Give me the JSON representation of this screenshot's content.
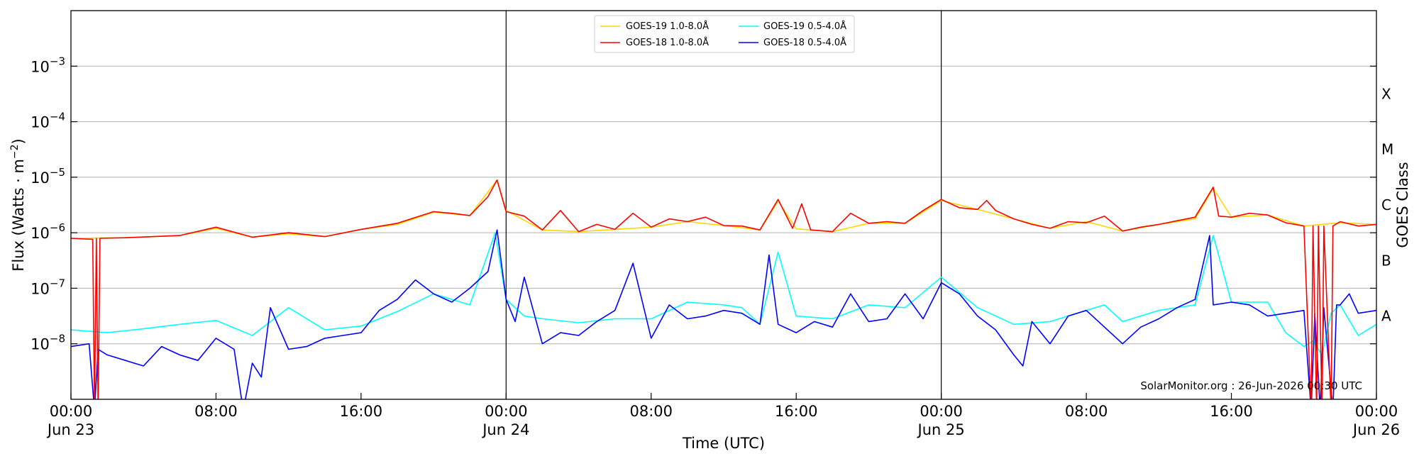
{
  "chart_data": {
    "type": "line",
    "xlabel": "Time (UTC)",
    "ylabel": "Flux (Watts · m",
    "ylabel_sup": "−2",
    "ylabel_close": ")",
    "right_ylabel": "GOES Class",
    "credit": "SolarMonitor.org : 26-Jun-2026 00:30 UTC",
    "x_range_hours": [
      0,
      72
    ],
    "y_range_log10": [
      -9,
      -2
    ],
    "y_scale": "log",
    "grid": "horizontal at decades",
    "legend_position": "top-center",
    "x_ticks": [
      {
        "hour": 0,
        "time": "00:00",
        "date": "Jun 23"
      },
      {
        "hour": 8,
        "time": "08:00",
        "date": ""
      },
      {
        "hour": 16,
        "time": "16:00",
        "date": ""
      },
      {
        "hour": 24,
        "time": "00:00",
        "date": "Jun 24"
      },
      {
        "hour": 32,
        "time": "08:00",
        "date": ""
      },
      {
        "hour": 40,
        "time": "16:00",
        "date": ""
      },
      {
        "hour": 48,
        "time": "00:00",
        "date": "Jun 25"
      },
      {
        "hour": 56,
        "time": "08:00",
        "date": ""
      },
      {
        "hour": 64,
        "time": "16:00",
        "date": ""
      },
      {
        "hour": 72,
        "time": "00:00",
        "date": "Jun 26"
      }
    ],
    "y_ticks": [
      {
        "exp": -8,
        "label": "−8"
      },
      {
        "exp": -7,
        "label": "−7"
      },
      {
        "exp": -6,
        "label": "−6"
      },
      {
        "exp": -5,
        "label": "−5"
      },
      {
        "exp": -4,
        "label": "−4"
      },
      {
        "exp": -3,
        "label": "−3"
      }
    ],
    "day_boundaries_hours": [
      24,
      48
    ],
    "goes_classes": [
      {
        "label": "A",
        "exp": -7.5
      },
      {
        "label": "B",
        "exp": -6.5
      },
      {
        "label": "C",
        "exp": -5.5
      },
      {
        "label": "M",
        "exp": -4.5
      },
      {
        "label": "X",
        "exp": -3.5
      }
    ],
    "colors": {
      "goes19_long": "#ffd700",
      "goes18_long": "#ff0000",
      "goes19_short": "#00ffff",
      "goes18_short": "#0000ff"
    },
    "series": [
      {
        "name": "GOES-19 1.0-8.0Å",
        "color": "#ffd700",
        "points": [
          [
            0,
            -6.1
          ],
          [
            3,
            -6.09
          ],
          [
            6,
            -6.05
          ],
          [
            8,
            -5.92
          ],
          [
            10,
            -6.08
          ],
          [
            12,
            -6.02
          ],
          [
            14,
            -6.07
          ],
          [
            16,
            -5.94
          ],
          [
            18,
            -5.85
          ],
          [
            20,
            -5.63
          ],
          [
            22,
            -5.69
          ],
          [
            23.5,
            -5.05
          ],
          [
            24,
            -5.6
          ],
          [
            26,
            -5.95
          ],
          [
            28,
            -5.98
          ],
          [
            30,
            -5.94
          ],
          [
            32,
            -5.9
          ],
          [
            34,
            -5.8
          ],
          [
            36,
            -5.87
          ],
          [
            38,
            -5.95
          ],
          [
            39,
            -5.43
          ],
          [
            40,
            -5.93
          ],
          [
            42,
            -5.98
          ],
          [
            44,
            -5.83
          ],
          [
            46,
            -5.83
          ],
          [
            48,
            -5.42
          ],
          [
            50,
            -5.58
          ],
          [
            52,
            -5.75
          ],
          [
            54,
            -5.92
          ],
          [
            56,
            -5.8
          ],
          [
            58,
            -5.97
          ],
          [
            60,
            -5.85
          ],
          [
            62,
            -5.75
          ],
          [
            63,
            -5.2
          ],
          [
            64,
            -5.72
          ],
          [
            66,
            -5.68
          ],
          [
            68,
            -5.88
          ],
          [
            70,
            -5.82
          ],
          [
            72,
            -5.85
          ]
        ]
      },
      {
        "name": "GOES-18 1.0-8.0Å",
        "color": "#ff0000",
        "points": [
          [
            0,
            -6.1
          ],
          [
            1.2,
            -6.12
          ],
          [
            1.3,
            -9.2
          ],
          [
            1.4,
            -6.1
          ],
          [
            1.5,
            -9.2
          ],
          [
            1.6,
            -6.1
          ],
          [
            3,
            -6.09
          ],
          [
            6,
            -6.05
          ],
          [
            8,
            -5.9
          ],
          [
            10,
            -6.08
          ],
          [
            12,
            -6.0
          ],
          [
            14,
            -6.07
          ],
          [
            16,
            -5.94
          ],
          [
            18,
            -5.83
          ],
          [
            20,
            -5.62
          ],
          [
            21,
            -5.65
          ],
          [
            22,
            -5.69
          ],
          [
            23,
            -5.35
          ],
          [
            23.5,
            -5.05
          ],
          [
            24,
            -5.62
          ],
          [
            25,
            -5.7
          ],
          [
            26,
            -5.95
          ],
          [
            27,
            -5.6
          ],
          [
            28,
            -5.98
          ],
          [
            29,
            -5.85
          ],
          [
            30,
            -5.94
          ],
          [
            31,
            -5.65
          ],
          [
            32,
            -5.9
          ],
          [
            33,
            -5.75
          ],
          [
            34,
            -5.8
          ],
          [
            35,
            -5.72
          ],
          [
            36,
            -5.87
          ],
          [
            37,
            -5.88
          ],
          [
            38,
            -5.95
          ],
          [
            39,
            -5.4
          ],
          [
            39.8,
            -5.92
          ],
          [
            40.3,
            -5.48
          ],
          [
            40.8,
            -5.95
          ],
          [
            42,
            -5.98
          ],
          [
            43,
            -5.65
          ],
          [
            44,
            -5.83
          ],
          [
            45,
            -5.8
          ],
          [
            46,
            -5.83
          ],
          [
            47,
            -5.6
          ],
          [
            48,
            -5.4
          ],
          [
            49,
            -5.55
          ],
          [
            50,
            -5.58
          ],
          [
            50.5,
            -5.42
          ],
          [
            51,
            -5.6
          ],
          [
            52,
            -5.75
          ],
          [
            53,
            -5.85
          ],
          [
            54,
            -5.92
          ],
          [
            55,
            -5.8
          ],
          [
            56,
            -5.82
          ],
          [
            57,
            -5.7
          ],
          [
            58,
            -5.97
          ],
          [
            59,
            -5.9
          ],
          [
            60,
            -5.85
          ],
          [
            62,
            -5.72
          ],
          [
            63,
            -5.18
          ],
          [
            63.3,
            -5.7
          ],
          [
            64,
            -5.72
          ],
          [
            65,
            -5.65
          ],
          [
            66,
            -5.68
          ],
          [
            67,
            -5.82
          ],
          [
            68,
            -5.88
          ],
          [
            68.4,
            -9.2
          ],
          [
            68.5,
            -5.88
          ],
          [
            68.7,
            -9.2
          ],
          [
            68.8,
            -5.88
          ],
          [
            69.0,
            -9.2
          ],
          [
            69.1,
            -5.88
          ],
          [
            69.5,
            -9.2
          ],
          [
            69.6,
            -5.88
          ],
          [
            70,
            -5.8
          ],
          [
            71,
            -5.88
          ],
          [
            72,
            -5.85
          ]
        ]
      },
      {
        "name": "GOES-19 0.5-4.0Å",
        "color": "#00ffff",
        "points": [
          [
            0,
            -7.75
          ],
          [
            2,
            -7.8
          ],
          [
            4,
            -7.73
          ],
          [
            6,
            -7.65
          ],
          [
            8,
            -7.58
          ],
          [
            10,
            -7.85
          ],
          [
            12,
            -7.35
          ],
          [
            14,
            -7.75
          ],
          [
            16,
            -7.68
          ],
          [
            18,
            -7.42
          ],
          [
            20,
            -7.1
          ],
          [
            22,
            -7.3
          ],
          [
            23.4,
            -6.0
          ],
          [
            24,
            -7.2
          ],
          [
            25,
            -7.5
          ],
          [
            26,
            -7.55
          ],
          [
            28,
            -7.62
          ],
          [
            30,
            -7.55
          ],
          [
            32,
            -7.55
          ],
          [
            34,
            -7.25
          ],
          [
            36,
            -7.3
          ],
          [
            37,
            -7.35
          ],
          [
            38,
            -7.65
          ],
          [
            39,
            -6.35
          ],
          [
            40,
            -7.5
          ],
          [
            42,
            -7.55
          ],
          [
            44,
            -7.3
          ],
          [
            46,
            -7.35
          ],
          [
            48,
            -6.8
          ],
          [
            50,
            -7.35
          ],
          [
            52,
            -7.65
          ],
          [
            54,
            -7.6
          ],
          [
            56,
            -7.4
          ],
          [
            57,
            -7.3
          ],
          [
            58,
            -7.6
          ],
          [
            60,
            -7.4
          ],
          [
            62,
            -7.3
          ],
          [
            63,
            -6.05
          ],
          [
            64,
            -7.25
          ],
          [
            66,
            -7.25
          ],
          [
            67,
            -7.8
          ],
          [
            68,
            -8.05
          ],
          [
            68.5,
            -7.95
          ],
          [
            69,
            -8.2
          ],
          [
            69.5,
            -7.45
          ],
          [
            70,
            -7.3
          ],
          [
            71,
            -7.85
          ],
          [
            72,
            -7.65
          ]
        ]
      },
      {
        "name": "GOES-18 0.5-4.0Å",
        "color": "#0000ff",
        "points": [
          [
            0,
            -8.05
          ],
          [
            1,
            -8.0
          ],
          [
            1.3,
            -9.2
          ],
          [
            1.5,
            -8.1
          ],
          [
            2,
            -8.2
          ],
          [
            3,
            -8.3
          ],
          [
            4,
            -8.4
          ],
          [
            5,
            -8.05
          ],
          [
            6,
            -8.2
          ],
          [
            7,
            -8.3
          ],
          [
            8,
            -7.9
          ],
          [
            9,
            -8.1
          ],
          [
            9.5,
            -9.2
          ],
          [
            10,
            -8.35
          ],
          [
            10.5,
            -8.6
          ],
          [
            11,
            -7.35
          ],
          [
            12,
            -8.1
          ],
          [
            13,
            -8.05
          ],
          [
            14,
            -7.9
          ],
          [
            15,
            -7.85
          ],
          [
            16,
            -7.8
          ],
          [
            17,
            -7.4
          ],
          [
            18,
            -7.2
          ],
          [
            19,
            -6.85
          ],
          [
            20,
            -7.1
          ],
          [
            21,
            -7.25
          ],
          [
            22,
            -7.0
          ],
          [
            23,
            -6.7
          ],
          [
            23.5,
            -5.95
          ],
          [
            24,
            -7.2
          ],
          [
            24.5,
            -7.6
          ],
          [
            25,
            -6.8
          ],
          [
            26,
            -8.0
          ],
          [
            27,
            -7.8
          ],
          [
            28,
            -7.85
          ],
          [
            29,
            -7.6
          ],
          [
            30,
            -7.4
          ],
          [
            31,
            -6.55
          ],
          [
            32,
            -7.9
          ],
          [
            33,
            -7.3
          ],
          [
            34,
            -7.55
          ],
          [
            35,
            -7.5
          ],
          [
            36,
            -7.4
          ],
          [
            37,
            -7.45
          ],
          [
            38,
            -7.65
          ],
          [
            38.5,
            -6.4
          ],
          [
            39,
            -7.65
          ],
          [
            40,
            -7.8
          ],
          [
            41,
            -7.6
          ],
          [
            42,
            -7.7
          ],
          [
            43,
            -7.1
          ],
          [
            44,
            -7.6
          ],
          [
            45,
            -7.55
          ],
          [
            46,
            -7.1
          ],
          [
            47,
            -7.55
          ],
          [
            48,
            -6.9
          ],
          [
            49,
            -7.1
          ],
          [
            50,
            -7.5
          ],
          [
            51,
            -7.75
          ],
          [
            52,
            -8.2
          ],
          [
            52.5,
            -8.4
          ],
          [
            53,
            -7.6
          ],
          [
            54,
            -8.0
          ],
          [
            55,
            -7.5
          ],
          [
            56,
            -7.4
          ],
          [
            57,
            -7.7
          ],
          [
            58,
            -8.0
          ],
          [
            59,
            -7.7
          ],
          [
            60,
            -7.55
          ],
          [
            61,
            -7.35
          ],
          [
            62,
            -7.2
          ],
          [
            62.8,
            -6.05
          ],
          [
            63,
            -7.3
          ],
          [
            64,
            -7.25
          ],
          [
            65,
            -7.3
          ],
          [
            66,
            -7.5
          ],
          [
            67,
            -7.45
          ],
          [
            68,
            -7.4
          ],
          [
            68.4,
            -9.2
          ],
          [
            68.6,
            -7.45
          ],
          [
            68.9,
            -9.2
          ],
          [
            69.1,
            -7.35
          ],
          [
            69.6,
            -9.2
          ],
          [
            69.8,
            -7.3
          ],
          [
            70,
            -7.3
          ],
          [
            70.5,
            -7.1
          ],
          [
            71,
            -7.45
          ],
          [
            72,
            -7.4
          ]
        ]
      }
    ]
  }
}
